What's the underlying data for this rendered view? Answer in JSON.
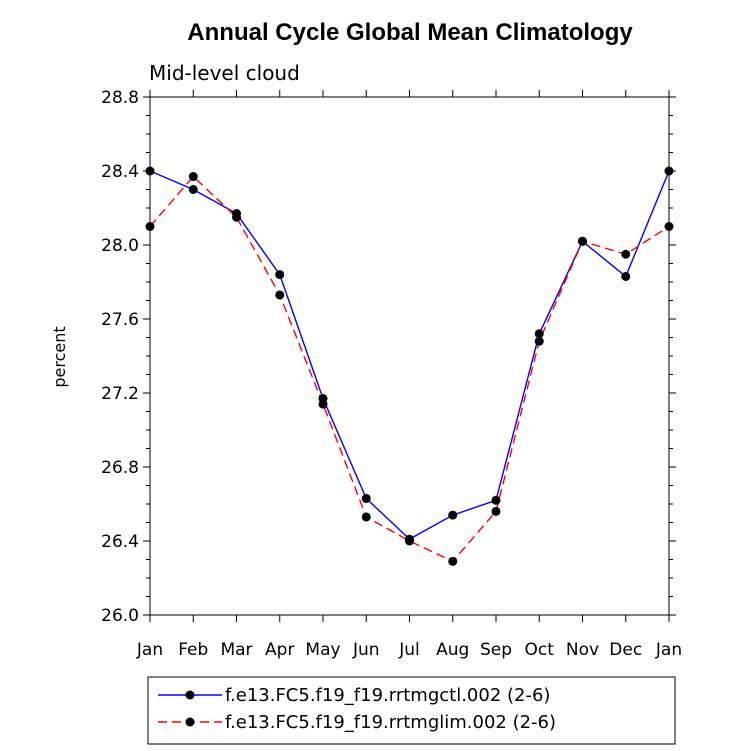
{
  "chart_data": {
    "type": "line",
    "title": "Annual Cycle Global Mean Climatology",
    "subtitle": "Mid-level cloud",
    "xlabel": "",
    "ylabel": "percent",
    "categories": [
      "Jan",
      "Feb",
      "Mar",
      "Apr",
      "May",
      "Jun",
      "Jul",
      "Aug",
      "Sep",
      "Oct",
      "Nov",
      "Dec",
      "Jan"
    ],
    "ylim": [
      26.0,
      28.8
    ],
    "yticks": [
      "26.0",
      "26.4",
      "26.8",
      "27.2",
      "27.6",
      "28.0",
      "28.4",
      "28.8"
    ],
    "series": [
      {
        "name": "f.e13.FC5.f19_f19.rrtmgctl.002 (2-6)",
        "color": "#0000ff",
        "dash": "solid",
        "values": [
          28.4,
          28.3,
          28.17,
          27.84,
          27.17,
          26.63,
          26.41,
          26.54,
          26.62,
          27.52,
          28.02,
          27.83,
          28.4
        ]
      },
      {
        "name": "f.e13.FC5.f19_f19.rrtmglim.002 (2-6)",
        "color": "#ff0000",
        "dash": "dashed",
        "values": [
          28.1,
          28.37,
          28.15,
          27.73,
          27.14,
          26.53,
          26.4,
          26.29,
          26.56,
          27.48,
          28.02,
          27.95,
          28.1
        ]
      }
    ],
    "legend": "bottom"
  }
}
